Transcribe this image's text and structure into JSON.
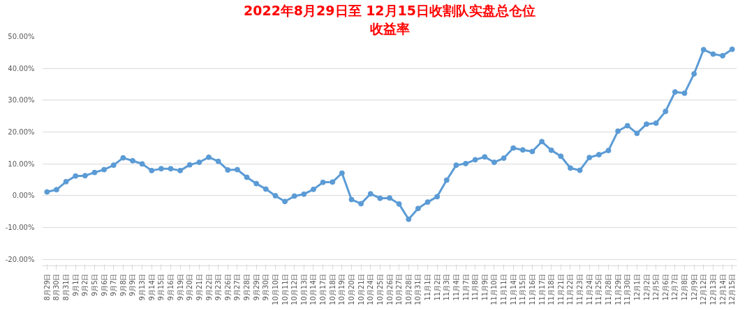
{
  "chart_data": {
    "type": "line",
    "title": "2022年8月29日至 12月15日收割队实盘总仓位",
    "subtitle": "收益率",
    "categories": [
      "8月29日",
      "8月30日",
      "8月31日",
      "9月1日",
      "9月2日",
      "9月5日",
      "9月6日",
      "9月7日",
      "9月8日",
      "9月9日",
      "9月13日",
      "9月14日",
      "9月15日",
      "9月16日",
      "9月19日",
      "9月20日",
      "9月21日",
      "9月22日",
      "9月23日",
      "9月26日",
      "9月27日",
      "9月28日",
      "9月29日",
      "9月30日",
      "10月10日",
      "10月11日",
      "10月12日",
      "10月13日",
      "10月14日",
      "10月17日",
      "10月18日",
      "10月19日",
      "10月20日",
      "10月21日",
      "10月24日",
      "10月25日",
      "10月26日",
      "10月27日",
      "10月28日",
      "10月31日",
      "11月1日",
      "11月2日",
      "11月3日",
      "11月4日",
      "11月7日",
      "11月8日",
      "11月9日",
      "11月10日",
      "11月11日",
      "11月14日",
      "11月15日",
      "11月16日",
      "11月17日",
      "11月18日",
      "11月21日",
      "11月22日",
      "11月23日",
      "11月24日",
      "11月25日",
      "11月28日",
      "11月29日",
      "11月30日",
      "12月1日",
      "12月2日",
      "12月5日",
      "12月6日",
      "12月7日",
      "12月8日",
      "12月9日",
      "12月12日",
      "12月13日",
      "12月14日",
      "12月15日"
    ],
    "series": [
      {
        "color": "#5b9bd5",
        "values": [
          1.2,
          1.9,
          4.4,
          6.2,
          6.3,
          7.3,
          8.2,
          9.6,
          11.9,
          11.0,
          10.0,
          7.9,
          8.5,
          8.5,
          7.9,
          9.7,
          10.5,
          12.1,
          10.8,
          8.1,
          8.2,
          5.8,
          3.8,
          2.1,
          0.0,
          -1.8,
          -0.1,
          0.5,
          2.0,
          4.2,
          4.3,
          7.1,
          -1.2,
          -2.5,
          0.6,
          -0.8,
          -0.7,
          -2.6,
          -7.4,
          -4.0,
          -2.0,
          -0.3,
          4.9,
          9.6,
          10.1,
          11.3,
          12.2,
          10.5,
          11.8,
          15.0,
          14.4,
          13.9,
          17.0,
          14.3,
          12.4,
          8.7,
          8.0,
          12.0,
          12.9,
          14.2,
          20.3,
          22.0,
          19.6,
          22.5,
          22.8,
          26.5,
          32.6,
          32.2,
          38.3,
          45.9,
          44.5,
          44.0,
          46.0
        ]
      }
    ],
    "ylim": [
      -22,
      50
    ],
    "yticks": [
      {
        "value": -20,
        "label": "-20.00%"
      },
      {
        "value": -10,
        "label": "-10.00%"
      },
      {
        "value": 0,
        "label": "0.00%"
      },
      {
        "value": 10,
        "label": "10.00%"
      },
      {
        "value": 20,
        "label": "20.00%"
      },
      {
        "value": 30,
        "label": "30.00%"
      },
      {
        "value": 40,
        "label": "40.00%"
      },
      {
        "value": 50,
        "label": "50.00%"
      }
    ],
    "grid": "y",
    "marker": "circle",
    "line_style": "solid"
  }
}
